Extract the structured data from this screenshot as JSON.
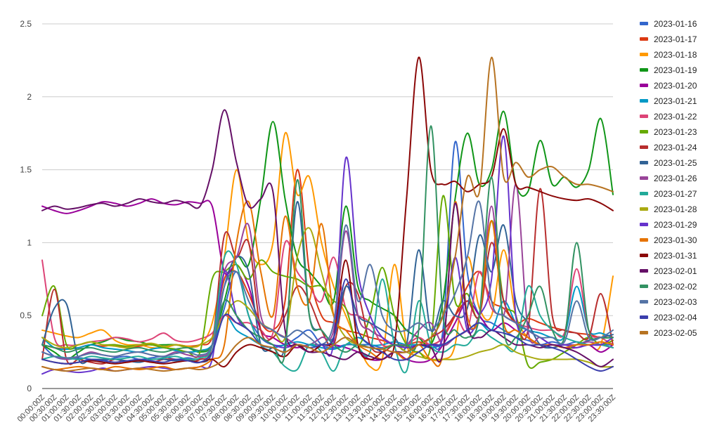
{
  "chart_data": {
    "type": "line",
    "title": "",
    "xlabel": "",
    "ylabel": "",
    "ylim": [
      0,
      2.5
    ],
    "yticks": [
      "0",
      "0.5",
      "1",
      "1.5",
      "2",
      "2.5"
    ],
    "grid": "horizontal",
    "legend_position": "right",
    "x": [
      "00:00:00Z",
      "00:30:00Z",
      "01:00:00Z",
      "01:30:00Z",
      "02:00:00Z",
      "02:30:00Z",
      "03:00:00Z",
      "03:30:00Z",
      "04:00:00Z",
      "04:30:00Z",
      "05:00:00Z",
      "05:30:00Z",
      "06:00:00Z",
      "06:30:00Z",
      "07:00:00Z",
      "07:30:00Z",
      "08:00:00Z",
      "08:30:00Z",
      "09:00:00Z",
      "09:30:00Z",
      "10:00:00Z",
      "10:30:00Z",
      "11:00:00Z",
      "11:30:00Z",
      "12:00:00Z",
      "12:30:00Z",
      "13:00:00Z",
      "13:30:00Z",
      "14:00:00Z",
      "14:30:00Z",
      "15:00:00Z",
      "15:30:00Z",
      "16:00:00Z",
      "16:30:00Z",
      "17:00:00Z",
      "17:30:00Z",
      "18:00:00Z",
      "18:30:00Z",
      "19:00:00Z",
      "19:30:00Z",
      "20:00:00Z",
      "20:30:00Z",
      "21:00:00Z",
      "21:30:00Z",
      "22:00:00Z",
      "22:30:00Z",
      "23:00:00Z",
      "23:30:00Z"
    ],
    "series": [
      {
        "name": "2023-01-16",
        "color": "#3366cc",
        "values": [
          0.3,
          0.22,
          0.2,
          0.21,
          0.2,
          0.19,
          0.21,
          0.22,
          0.2,
          0.21,
          0.22,
          0.2,
          0.21,
          0.2,
          0.25,
          0.55,
          0.8,
          0.5,
          0.35,
          0.3,
          0.3,
          0.35,
          0.4,
          0.3,
          0.28,
          0.3,
          0.3,
          0.3,
          0.28,
          0.3,
          0.3,
          0.3,
          0.3,
          0.4,
          1.69,
          0.8,
          0.5,
          0.45,
          0.4,
          0.35,
          0.33,
          0.3,
          0.32,
          0.3,
          0.32,
          0.3,
          0.3,
          0.3
        ]
      },
      {
        "name": "2023-01-17",
        "color": "#dc3912",
        "values": [
          0.3,
          0.28,
          0.27,
          0.28,
          0.3,
          0.29,
          0.3,
          0.28,
          0.29,
          0.3,
          0.28,
          0.3,
          0.29,
          0.3,
          0.35,
          0.75,
          0.8,
          0.65,
          0.45,
          0.4,
          0.6,
          1.5,
          0.8,
          0.5,
          0.45,
          0.4,
          0.38,
          0.35,
          0.33,
          0.3,
          0.3,
          0.32,
          0.3,
          0.35,
          0.5,
          0.7,
          0.8,
          0.6,
          0.55,
          0.45,
          0.48,
          0.45,
          0.42,
          0.4,
          0.38,
          0.37,
          0.35,
          0.35
        ]
      },
      {
        "name": "2023-01-18",
        "color": "#ff9900",
        "values": [
          0.4,
          0.38,
          0.36,
          0.35,
          0.38,
          0.4,
          0.33,
          0.3,
          0.3,
          0.28,
          0.28,
          0.3,
          0.29,
          0.3,
          0.45,
          0.9,
          1.5,
          1.0,
          0.85,
          1.0,
          1.75,
          1.33,
          1.45,
          1.0,
          0.7,
          0.5,
          0.3,
          0.15,
          0.2,
          0.85,
          0.3,
          0.25,
          0.2,
          0.2,
          0.3,
          0.9,
          0.55,
          0.5,
          0.95,
          0.5,
          0.35,
          0.3,
          0.3,
          0.28,
          0.3,
          0.3,
          0.3,
          0.77
        ]
      },
      {
        "name": "2023-01-19",
        "color": "#109618",
        "values": [
          0.3,
          0.25,
          0.2,
          0.25,
          0.3,
          0.32,
          0.35,
          0.33,
          0.32,
          0.3,
          0.3,
          0.3,
          0.28,
          0.25,
          0.3,
          0.6,
          0.9,
          0.85,
          1.3,
          1.83,
          1.3,
          0.9,
          0.8,
          0.7,
          0.6,
          1.25,
          0.7,
          0.6,
          0.55,
          0.5,
          0.4,
          0.35,
          0.3,
          0.6,
          1.3,
          1.75,
          1.4,
          1.5,
          1.9,
          1.4,
          1.35,
          1.7,
          1.4,
          1.45,
          1.38,
          1.5,
          1.85,
          1.33
        ]
      },
      {
        "name": "2023-01-20",
        "color": "#990099",
        "values": [
          1.25,
          1.22,
          1.2,
          1.22,
          1.25,
          1.28,
          1.27,
          1.25,
          1.27,
          1.3,
          1.27,
          1.26,
          1.28,
          1.27,
          1.25,
          0.8,
          0.85,
          0.7,
          0.4,
          0.35,
          0.3,
          0.28,
          0.3,
          0.3,
          0.3,
          0.28,
          0.25,
          0.2,
          0.2,
          0.25,
          0.2,
          0.18,
          0.2,
          0.3,
          0.45,
          0.6,
          0.5,
          0.4,
          0.45,
          0.4,
          0.35,
          0.3,
          0.3,
          0.28,
          0.28,
          0.3,
          0.25,
          0.3
        ]
      },
      {
        "name": "2023-01-21",
        "color": "#0099c6",
        "values": [
          0.35,
          0.28,
          0.27,
          0.28,
          0.3,
          0.28,
          0.27,
          0.26,
          0.25,
          0.27,
          0.28,
          0.26,
          0.25,
          0.26,
          0.3,
          0.5,
          0.4,
          0.35,
          0.3,
          0.28,
          0.3,
          0.32,
          0.3,
          0.28,
          0.27,
          0.3,
          0.35,
          0.3,
          0.3,
          0.32,
          0.3,
          0.3,
          0.28,
          0.3,
          0.35,
          0.4,
          0.45,
          0.4,
          0.6,
          0.45,
          0.4,
          0.38,
          0.35,
          0.36,
          0.7,
          0.4,
          0.38,
          0.35
        ]
      },
      {
        "name": "2023-01-22",
        "color": "#dd4477",
        "values": [
          0.88,
          0.35,
          0.3,
          0.3,
          0.32,
          0.33,
          0.35,
          0.34,
          0.32,
          0.34,
          0.38,
          0.33,
          0.32,
          0.34,
          0.38,
          0.5,
          0.45,
          0.45,
          0.4,
          0.38,
          1.0,
          0.8,
          0.7,
          0.6,
          0.9,
          0.55,
          0.5,
          0.45,
          0.3,
          0.3,
          0.3,
          0.35,
          0.3,
          0.35,
          0.5,
          0.4,
          0.8,
          0.55,
          0.5,
          0.45,
          0.42,
          0.4,
          0.4,
          0.38,
          0.82,
          0.4,
          0.35,
          0.3
        ]
      },
      {
        "name": "2023-01-23",
        "color": "#66aa00",
        "values": [
          0.5,
          0.7,
          0.3,
          0.3,
          0.32,
          0.3,
          0.3,
          0.29,
          0.3,
          0.3,
          0.28,
          0.27,
          0.25,
          0.25,
          0.75,
          0.8,
          0.85,
          0.75,
          0.88,
          0.8,
          0.77,
          0.75,
          0.7,
          0.7,
          0.6,
          0.55,
          0.3,
          0.5,
          0.83,
          0.5,
          0.3,
          0.25,
          0.3,
          1.32,
          0.6,
          0.65,
          0.5,
          1.15,
          0.6,
          0.5,
          0.16,
          0.18,
          0.2,
          0.25,
          0.3,
          0.35,
          0.3,
          0.33
        ]
      },
      {
        "name": "2023-01-24",
        "color": "#b82e2e",
        "values": [
          0.2,
          0.68,
          0.2,
          0.2,
          0.18,
          0.17,
          0.2,
          0.18,
          0.2,
          0.18,
          0.2,
          0.2,
          0.19,
          0.2,
          0.3,
          1.05,
          0.9,
          1.0,
          0.4,
          0.35,
          0.5,
          0.7,
          0.6,
          0.4,
          0.3,
          0.7,
          0.65,
          0.3,
          0.25,
          0.3,
          0.28,
          0.3,
          0.35,
          0.4,
          0.5,
          0.6,
          0.5,
          1.0,
          0.6,
          0.45,
          0.4,
          1.37,
          0.5,
          0.4,
          0.38,
          0.35,
          0.65,
          0.3
        ]
      },
      {
        "name": "2023-01-25",
        "color": "#316395",
        "values": [
          0.3,
          0.55,
          0.58,
          0.2,
          0.2,
          0.2,
          0.2,
          0.19,
          0.18,
          0.2,
          0.2,
          0.19,
          0.2,
          0.18,
          0.25,
          0.7,
          0.9,
          0.8,
          0.3,
          0.28,
          0.3,
          1.28,
          0.5,
          0.4,
          0.35,
          0.7,
          0.5,
          0.45,
          0.4,
          0.35,
          0.3,
          0.95,
          0.4,
          0.6,
          0.5,
          0.55,
          1.05,
          0.8,
          1.12,
          0.6,
          0.45,
          0.3,
          0.28,
          0.3,
          0.3,
          0.33,
          0.35,
          0.37
        ]
      },
      {
        "name": "2023-01-26",
        "color": "#994499",
        "values": [
          0.25,
          0.22,
          0.2,
          0.22,
          0.25,
          0.23,
          0.22,
          0.24,
          0.25,
          0.23,
          0.22,
          0.25,
          0.23,
          0.22,
          0.3,
          0.8,
          0.9,
          1.12,
          0.5,
          0.4,
          0.35,
          0.3,
          0.3,
          0.35,
          0.4,
          1.08,
          0.5,
          0.4,
          0.35,
          0.3,
          0.3,
          0.4,
          0.45,
          0.3,
          0.35,
          0.4,
          0.5,
          1.25,
          0.5,
          1.4,
          0.4,
          0.35,
          0.3,
          0.3,
          0.3,
          0.32,
          0.3,
          0.28
        ]
      },
      {
        "name": "2023-01-27",
        "color": "#22aa99",
        "values": [
          0.2,
          0.22,
          0.21,
          0.2,
          0.22,
          0.21,
          0.2,
          0.21,
          0.22,
          0.2,
          0.21,
          0.22,
          0.2,
          0.21,
          0.3,
          0.9,
          0.85,
          0.5,
          0.3,
          0.25,
          0.15,
          0.13,
          0.3,
          0.25,
          0.12,
          0.3,
          0.28,
          0.25,
          0.75,
          0.3,
          0.12,
          0.6,
          0.3,
          0.25,
          0.3,
          0.3,
          0.4,
          0.35,
          0.3,
          0.28,
          0.7,
          0.5,
          0.4,
          0.35,
          0.32,
          0.3,
          0.3,
          0.28
        ]
      },
      {
        "name": "2023-01-28",
        "color": "#aaaa11",
        "values": [
          0.35,
          0.3,
          0.28,
          0.3,
          0.32,
          0.3,
          0.29,
          0.28,
          0.3,
          0.31,
          0.29,
          0.3,
          0.28,
          0.3,
          0.35,
          0.5,
          0.6,
          0.55,
          0.45,
          0.4,
          0.35,
          0.9,
          1.1,
          0.8,
          0.5,
          0.35,
          0.3,
          0.28,
          0.27,
          0.3,
          0.25,
          0.22,
          0.2,
          0.2,
          0.2,
          0.22,
          0.25,
          0.27,
          0.3,
          0.25,
          0.22,
          0.2,
          0.2,
          0.2,
          0.2,
          0.18,
          0.15,
          0.15
        ]
      },
      {
        "name": "2023-01-29",
        "color": "#6633cc",
        "values": [
          0.1,
          0.13,
          0.12,
          0.11,
          0.12,
          0.14,
          0.12,
          0.13,
          0.14,
          0.15,
          0.14,
          0.13,
          0.14,
          0.15,
          0.2,
          0.8,
          0.5,
          0.4,
          0.35,
          0.3,
          0.28,
          0.3,
          0.25,
          0.3,
          0.32,
          1.58,
          0.8,
          0.5,
          0.35,
          0.3,
          0.28,
          0.3,
          0.3,
          0.35,
          0.9,
          0.4,
          0.5,
          0.75,
          1.73,
          0.5,
          0.4,
          0.35,
          0.3,
          0.3,
          0.28,
          0.3,
          0.3,
          0.35
        ]
      },
      {
        "name": "2023-01-30",
        "color": "#e67300",
        "values": [
          0.15,
          0.13,
          0.14,
          0.15,
          0.14,
          0.13,
          0.15,
          0.14,
          0.13,
          0.14,
          0.15,
          0.13,
          0.14,
          0.15,
          0.2,
          0.3,
          1.0,
          1.28,
          0.8,
          0.5,
          1.18,
          0.7,
          0.6,
          1.13,
          0.5,
          0.4,
          0.3,
          0.25,
          0.2,
          0.25,
          0.2,
          0.3,
          0.2,
          0.25,
          1.28,
          0.5,
          0.5,
          1.15,
          0.45,
          0.4,
          0.35,
          0.3,
          0.3,
          0.28,
          0.3,
          0.3,
          0.32,
          0.3
        ]
      },
      {
        "name": "2023-01-31",
        "color": "#8b0707",
        "values": [
          0.2,
          0.18,
          0.17,
          0.18,
          0.19,
          0.18,
          0.17,
          0.18,
          0.19,
          0.18,
          0.17,
          0.18,
          0.19,
          0.18,
          0.2,
          0.15,
          0.25,
          0.3,
          0.28,
          0.25,
          0.22,
          0.3,
          0.25,
          0.3,
          0.35,
          0.88,
          0.3,
          0.2,
          0.25,
          0.3,
          1.3,
          2.27,
          1.5,
          1.4,
          1.42,
          1.35,
          1.4,
          1.45,
          1.78,
          1.4,
          1.38,
          1.35,
          1.32,
          1.3,
          1.29,
          1.3,
          1.27,
          1.22
        ]
      },
      {
        "name": "2023-02-01",
        "color": "#651067",
        "values": [
          1.22,
          1.25,
          1.23,
          1.24,
          1.26,
          1.27,
          1.25,
          1.27,
          1.3,
          1.28,
          1.27,
          1.29,
          1.27,
          1.25,
          1.5,
          1.91,
          1.55,
          1.25,
          1.3,
          1.35,
          0.4,
          0.3,
          0.25,
          0.25,
          0.22,
          0.2,
          0.25,
          0.22,
          0.2,
          0.25,
          0.25,
          0.3,
          0.28,
          0.25,
          1.27,
          0.45,
          0.35,
          0.4,
          0.35,
          0.3,
          0.3,
          0.28,
          0.3,
          0.28,
          0.25,
          0.2,
          0.15,
          0.2
        ]
      },
      {
        "name": "2023-02-02",
        "color": "#329262",
        "values": [
          0.3,
          0.28,
          0.25,
          0.27,
          0.28,
          0.26,
          0.25,
          0.27,
          0.28,
          0.26,
          0.25,
          0.27,
          0.28,
          0.26,
          0.3,
          0.6,
          0.5,
          0.4,
          0.35,
          0.3,
          0.25,
          1.43,
          0.5,
          0.4,
          0.3,
          0.25,
          0.3,
          0.28,
          0.27,
          0.3,
          0.3,
          0.4,
          1.8,
          0.5,
          0.4,
          0.35,
          0.5,
          1.45,
          0.4,
          0.35,
          0.5,
          0.7,
          0.4,
          0.35,
          1.0,
          0.4,
          0.35,
          0.35
        ]
      },
      {
        "name": "2023-02-03",
        "color": "#5574a6",
        "values": [
          0.25,
          0.22,
          0.21,
          0.22,
          0.24,
          0.23,
          0.22,
          0.24,
          0.25,
          0.23,
          0.22,
          0.24,
          0.25,
          0.23,
          0.3,
          0.7,
          0.8,
          0.6,
          0.45,
          0.4,
          0.35,
          0.4,
          0.35,
          0.3,
          0.45,
          1.12,
          0.6,
          0.85,
          0.5,
          0.4,
          0.4,
          0.45,
          0.4,
          0.5,
          0.65,
          0.9,
          1.28,
          0.6,
          0.5,
          0.45,
          0.4,
          0.35,
          0.35,
          0.32,
          0.6,
          0.35,
          0.35,
          0.4
        ]
      },
      {
        "name": "2023-02-04",
        "color": "#3b3eac",
        "values": [
          0.2,
          0.18,
          0.17,
          0.18,
          0.2,
          0.19,
          0.18,
          0.19,
          0.2,
          0.19,
          0.18,
          0.2,
          0.19,
          0.18,
          0.25,
          0.5,
          0.45,
          0.4,
          0.3,
          0.28,
          0.25,
          0.3,
          0.28,
          0.3,
          0.35,
          0.75,
          0.4,
          0.3,
          0.25,
          0.2,
          0.2,
          0.25,
          0.3,
          0.3,
          0.35,
          0.4,
          0.45,
          0.4,
          0.38,
          0.35,
          0.3,
          0.3,
          0.28,
          0.25,
          0.2,
          0.15,
          0.12,
          0.15
        ]
      },
      {
        "name": "2023-02-05",
        "color": "#b77322",
        "values": [
          0.15,
          0.13,
          0.12,
          0.13,
          0.14,
          0.13,
          0.12,
          0.13,
          0.14,
          0.13,
          0.12,
          0.13,
          0.14,
          0.13,
          0.15,
          0.2,
          0.3,
          0.35,
          0.3,
          0.28,
          0.25,
          0.3,
          0.28,
          0.25,
          0.3,
          0.35,
          0.3,
          0.28,
          0.27,
          0.25,
          0.25,
          0.3,
          0.35,
          0.5,
          0.9,
          1.45,
          1.35,
          2.27,
          1.45,
          1.55,
          1.45,
          1.5,
          1.52,
          1.45,
          1.4,
          1.4,
          1.38,
          1.35
        ]
      }
    ]
  }
}
